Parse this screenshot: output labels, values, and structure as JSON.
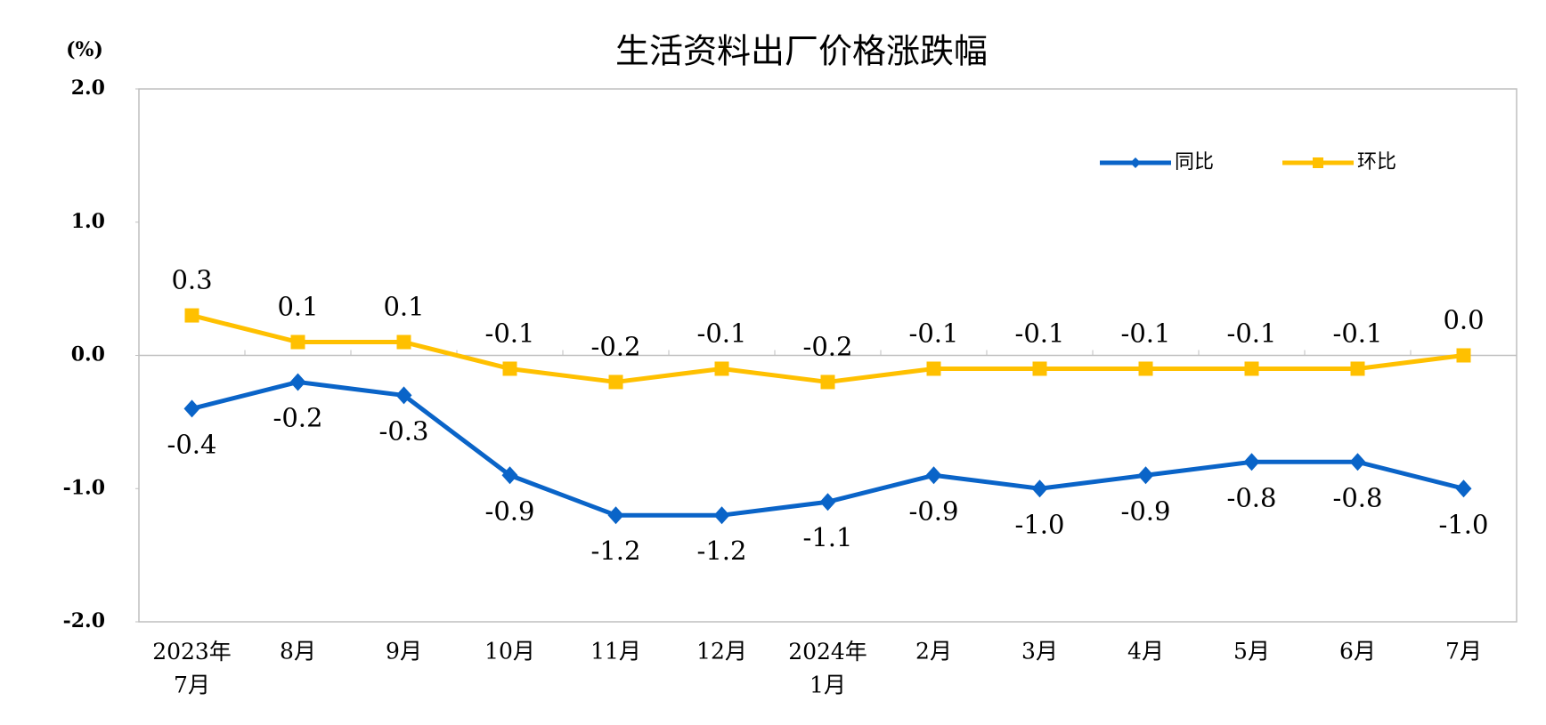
{
  "chart_data": {
    "type": "line",
    "title": "生活资料出厂价格涨跌幅",
    "y_unit": "(%)",
    "categories": [
      "2023年\n7月",
      "8月",
      "9月",
      "10月",
      "11月",
      "12月",
      "2024年\n1月",
      "2月",
      "3月",
      "4月",
      "5月",
      "6月",
      "7月"
    ],
    "series": [
      {
        "name": "同比",
        "color": "#0a64c8",
        "marker": "diamond",
        "values": [
          -0.4,
          -0.2,
          -0.3,
          -0.9,
          -1.2,
          -1.2,
          -1.1,
          -0.9,
          -1.0,
          -0.9,
          -0.8,
          -0.8,
          -1.0
        ],
        "value_labels": [
          "-0.4",
          "-0.2",
          "-0.3",
          "-0.9",
          "-1.2",
          "-1.2",
          "-1.1",
          "-0.9",
          "-1.0",
          "-0.9",
          "-0.8",
          "-0.8",
          "-1.0"
        ]
      },
      {
        "name": "环比",
        "color": "#ffc000",
        "marker": "square",
        "values": [
          0.3,
          0.1,
          0.1,
          -0.1,
          -0.2,
          -0.1,
          -0.2,
          -0.1,
          -0.1,
          -0.1,
          -0.1,
          -0.1,
          0.0
        ],
        "value_labels": [
          "0.3",
          "0.1",
          "0.1",
          "-0.1",
          "-0.2",
          "-0.1",
          "-0.2",
          "-0.1",
          "-0.1",
          "-0.1",
          "-0.1",
          "-0.1",
          "0.0"
        ]
      }
    ],
    "ylim": [
      -2,
      2
    ],
    "yticks": [
      {
        "value": 2,
        "label": "2.0"
      },
      {
        "value": 1,
        "label": "1.0"
      },
      {
        "value": 0,
        "label": "0.0"
      },
      {
        "value": -1,
        "label": "-1.0"
      },
      {
        "value": -2,
        "label": "-2.0"
      }
    ],
    "legend": "top-right"
  }
}
